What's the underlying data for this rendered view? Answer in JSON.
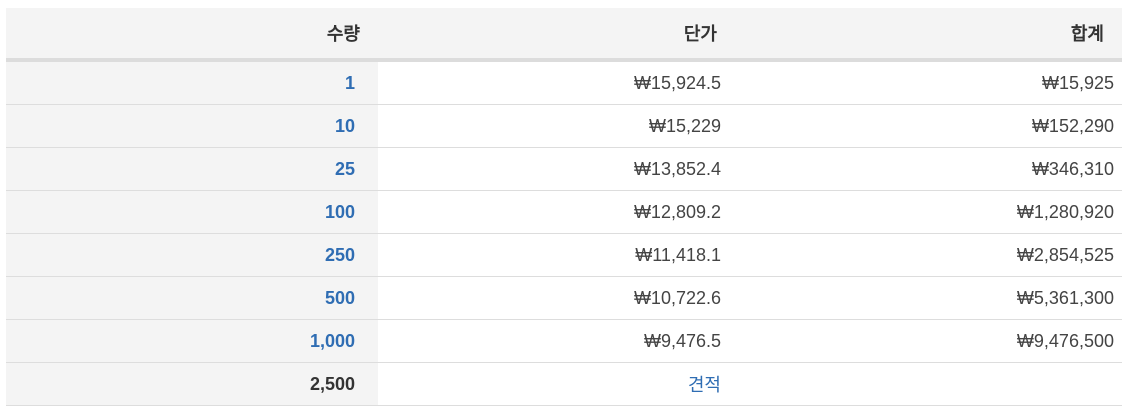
{
  "table": {
    "headers": {
      "quantity": "수량",
      "unit_price": "단가",
      "total": "합계"
    },
    "rows": [
      {
        "quantity": "1",
        "unit_price": "₩15,924.5",
        "total": "₩15,925"
      },
      {
        "quantity": "10",
        "unit_price": "₩15,229",
        "total": "₩152,290"
      },
      {
        "quantity": "25",
        "unit_price": "₩13,852.4",
        "total": "₩346,310"
      },
      {
        "quantity": "100",
        "unit_price": "₩12,809.2",
        "total": "₩1,280,920"
      },
      {
        "quantity": "250",
        "unit_price": "₩11,418.1",
        "total": "₩2,854,525"
      },
      {
        "quantity": "500",
        "unit_price": "₩10,722.6",
        "total": "₩5,361,300"
      },
      {
        "quantity": "1,000",
        "unit_price": "₩9,476.5",
        "total": "₩9,476,500"
      }
    ],
    "quote_row": {
      "quantity": "2,500",
      "link_label": "견적"
    }
  },
  "colors": {
    "link_blue": "#2f6db3",
    "header_bg": "#f4f4f4",
    "text_dark": "#333333"
  }
}
